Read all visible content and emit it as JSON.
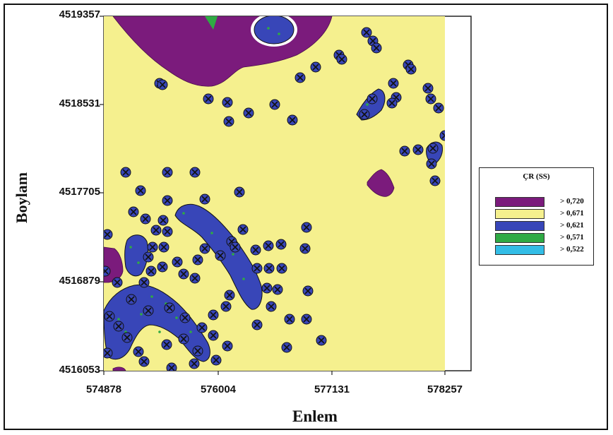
{
  "axes": {
    "ylabel": "Boylam",
    "xlabel": "Enlem",
    "yticks": [
      "4519357",
      "4518531",
      "4517705",
      "4516879",
      "4516053"
    ],
    "xticks": [
      "574878",
      "576004",
      "577131",
      "578257"
    ]
  },
  "legend": {
    "title": "ÇR (SS)",
    "items": [
      {
        "label": "> 0,720",
        "color": "#7b1b7c"
      },
      {
        "label": "> 0,671",
        "color": "#f5f08e"
      },
      {
        "label": "> 0,621",
        "color": "#3846b8"
      },
      {
        "label": "> 0,571",
        "color": "#2faa44"
      },
      {
        "label": "> 0,522",
        "color": "#33bde6"
      }
    ]
  },
  "colors": {
    "background_class": "#f5f08e",
    "marker": "#111111"
  }
}
